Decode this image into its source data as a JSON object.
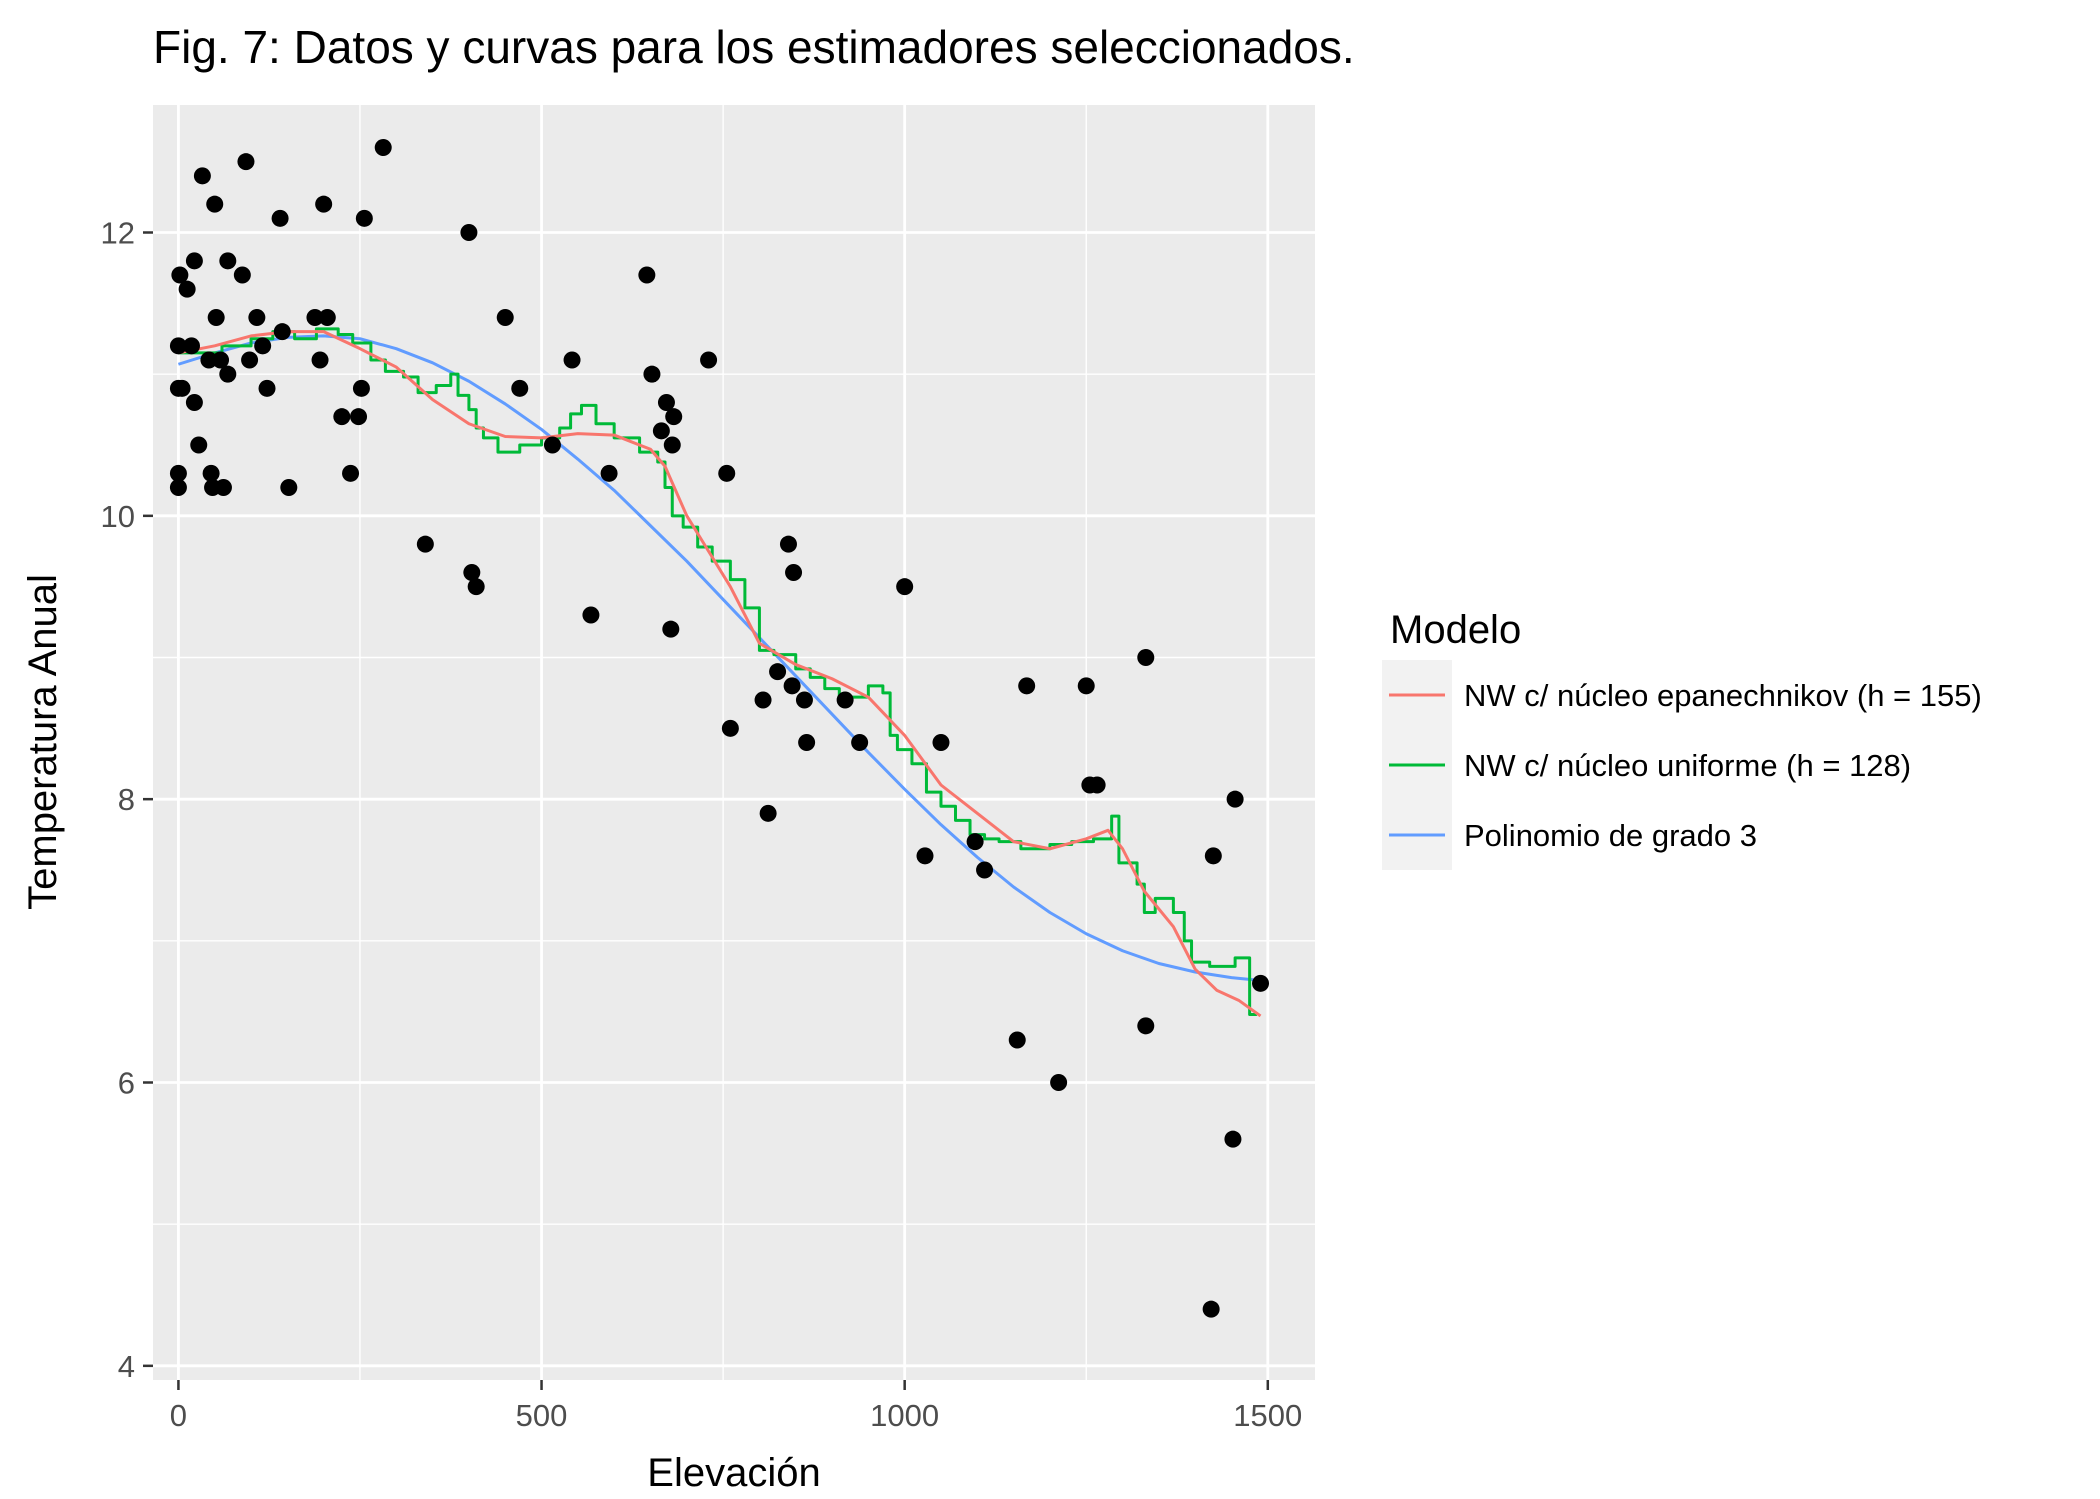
{
  "chart_data": {
    "type": "scatter",
    "title": "Fig. 7: Datos y curvas para los estimadores seleccionados.",
    "xlabel": "Elevación",
    "ylabel": "Temperatura Anual",
    "xlim": [
      -35,
      1565
    ],
    "ylim": [
      3.9,
      12.9
    ],
    "x_ticks": [
      0,
      500,
      1000,
      1500
    ],
    "x_tick_labels": [
      "0",
      "500",
      "1000",
      "1500"
    ],
    "y_ticks": [
      4,
      6,
      8,
      10,
      12
    ],
    "y_tick_labels": [
      "4",
      "6",
      "8",
      "10",
      "12"
    ],
    "grid": true,
    "legend": {
      "title": "Modelo",
      "position": "right",
      "entries": [
        {
          "label": "NW c/ núcleo epanechnikov (h = 155)",
          "color": "#F8766D"
        },
        {
          "label": "NW c/ núcleo uniforme (h = 128)",
          "color": "#00BA38"
        },
        {
          "label": "Polinomio de grado 3",
          "color": "#619CFF"
        }
      ]
    },
    "points": [
      [
        0,
        11.2
      ],
      [
        0,
        10.9
      ],
      [
        0,
        10.3
      ],
      [
        0,
        10.2
      ],
      [
        2,
        11.7
      ],
      [
        5,
        10.9
      ],
      [
        12,
        11.6
      ],
      [
        18,
        11.2
      ],
      [
        22,
        11.8
      ],
      [
        22,
        10.8
      ],
      [
        28,
        10.5
      ],
      [
        33,
        12.4
      ],
      [
        42,
        11.1
      ],
      [
        45,
        10.3
      ],
      [
        47,
        10.2
      ],
      [
        50,
        12.2
      ],
      [
        52,
        11.4
      ],
      [
        58,
        11.1
      ],
      [
        62,
        10.2
      ],
      [
        68,
        11.8
      ],
      [
        68,
        11.0
      ],
      [
        88,
        11.7
      ],
      [
        93,
        12.5
      ],
      [
        98,
        11.1
      ],
      [
        108,
        11.4
      ],
      [
        116,
        11.2
      ],
      [
        122,
        10.9
      ],
      [
        140,
        12.1
      ],
      [
        143,
        11.3
      ],
      [
        152,
        10.2
      ],
      [
        188,
        11.4
      ],
      [
        195,
        11.1
      ],
      [
        200,
        12.2
      ],
      [
        205,
        11.4
      ],
      [
        225,
        10.7
      ],
      [
        237,
        10.3
      ],
      [
        248,
        10.7
      ],
      [
        252,
        10.9
      ],
      [
        256,
        12.1
      ],
      [
        282,
        12.6
      ],
      [
        340,
        9.8
      ],
      [
        400,
        12.0
      ],
      [
        404,
        9.6
      ],
      [
        410,
        9.5
      ],
      [
        450,
        11.4
      ],
      [
        470,
        10.9
      ],
      [
        515,
        10.5
      ],
      [
        542,
        11.1
      ],
      [
        568,
        9.3
      ],
      [
        593,
        10.3
      ],
      [
        645,
        11.7
      ],
      [
        652,
        11.0
      ],
      [
        665,
        10.6
      ],
      [
        672,
        10.8
      ],
      [
        678,
        9.2
      ],
      [
        680,
        10.5
      ],
      [
        682,
        10.7
      ],
      [
        730,
        11.1
      ],
      [
        755,
        10.3
      ],
      [
        760,
        8.5
      ],
      [
        805,
        8.7
      ],
      [
        812,
        7.9
      ],
      [
        825,
        8.9
      ],
      [
        840,
        9.8
      ],
      [
        845,
        8.8
      ],
      [
        847,
        9.6
      ],
      [
        862,
        8.7
      ],
      [
        865,
        8.4
      ],
      [
        918,
        8.7
      ],
      [
        938,
        8.4
      ],
      [
        1000,
        9.5
      ],
      [
        1028,
        7.6
      ],
      [
        1050,
        8.4
      ],
      [
        1097,
        7.7
      ],
      [
        1110,
        7.5
      ],
      [
        1155,
        6.3
      ],
      [
        1168,
        8.8
      ],
      [
        1212,
        6.0
      ],
      [
        1250,
        8.8
      ],
      [
        1255,
        8.1
      ],
      [
        1265,
        8.1
      ],
      [
        1332,
        9.0
      ],
      [
        1332,
        6.4
      ],
      [
        1422,
        4.4
      ],
      [
        1425,
        7.6
      ],
      [
        1452,
        5.6
      ],
      [
        1455,
        8.0
      ],
      [
        1490,
        6.7
      ]
    ],
    "series": [
      {
        "name": "NW c/ núcleo epanechnikov (h = 155)",
        "color": "#F8766D",
        "x": [
          0,
          50,
          100,
          150,
          200,
          250,
          300,
          350,
          400,
          450,
          500,
          550,
          600,
          650,
          670,
          700,
          730,
          760,
          800,
          850,
          900,
          950,
          1000,
          1050,
          1100,
          1150,
          1200,
          1250,
          1280,
          1300,
          1330,
          1370,
          1400,
          1430,
          1460,
          1490
        ],
        "y": [
          11.15,
          11.2,
          11.27,
          11.3,
          11.3,
          11.18,
          11.05,
          10.82,
          10.65,
          10.56,
          10.55,
          10.58,
          10.57,
          10.47,
          10.35,
          10.0,
          9.75,
          9.5,
          9.1,
          8.95,
          8.85,
          8.72,
          8.45,
          8.1,
          7.9,
          7.7,
          7.65,
          7.72,
          7.78,
          7.65,
          7.35,
          7.1,
          6.8,
          6.65,
          6.58,
          6.47
        ]
      },
      {
        "name": "NW c/ núcleo uniforme (h = 128)",
        "color": "#00BA38",
        "x": [
          0,
          60,
          100,
          130,
          160,
          190,
          220,
          240,
          265,
          285,
          310,
          330,
          355,
          375,
          385,
          400,
          410,
          420,
          440,
          470,
          500,
          525,
          540,
          555,
          575,
          600,
          635,
          660,
          670,
          680,
          695,
          715,
          735,
          760,
          780,
          800,
          820,
          850,
          870,
          890,
          910,
          940,
          950,
          970,
          980,
          990,
          1010,
          1030,
          1050,
          1070,
          1090,
          1110,
          1130,
          1160,
          1200,
          1230,
          1260,
          1285,
          1295,
          1320,
          1330,
          1345,
          1370,
          1385,
          1395,
          1420,
          1445,
          1455,
          1475,
          1485
        ],
        "y": [
          11.15,
          11.2,
          11.25,
          11.3,
          11.25,
          11.32,
          11.28,
          11.22,
          11.1,
          11.02,
          10.98,
          10.87,
          10.92,
          11.0,
          10.85,
          10.75,
          10.62,
          10.55,
          10.45,
          10.5,
          10.55,
          10.62,
          10.72,
          10.78,
          10.65,
          10.55,
          10.45,
          10.38,
          10.2,
          10.0,
          9.92,
          9.78,
          9.68,
          9.55,
          9.35,
          9.05,
          9.02,
          8.92,
          8.86,
          8.78,
          8.72,
          8.72,
          8.8,
          8.75,
          8.45,
          8.35,
          8.25,
          8.05,
          7.95,
          7.85,
          7.75,
          7.72,
          7.7,
          7.65,
          7.68,
          7.7,
          7.72,
          7.88,
          7.55,
          7.4,
          7.2,
          7.3,
          7.2,
          7.0,
          6.85,
          6.82,
          6.82,
          6.88,
          6.48,
          6.48
        ]
      },
      {
        "name": "Polinomio de grado 3",
        "color": "#619CFF",
        "x": [
          0,
          50,
          100,
          150,
          200,
          250,
          300,
          350,
          400,
          450,
          500,
          550,
          600,
          650,
          700,
          750,
          800,
          850,
          900,
          950,
          1000,
          1050,
          1100,
          1150,
          1200,
          1250,
          1300,
          1350,
          1400,
          1450,
          1490
        ],
        "y": [
          11.07,
          11.15,
          11.22,
          11.26,
          11.27,
          11.25,
          11.18,
          11.08,
          10.95,
          10.79,
          10.61,
          10.4,
          10.18,
          9.93,
          9.68,
          9.41,
          9.14,
          8.87,
          8.6,
          8.33,
          8.07,
          7.82,
          7.59,
          7.38,
          7.2,
          7.05,
          6.93,
          6.84,
          6.78,
          6.74,
          6.72
        ]
      }
    ]
  }
}
